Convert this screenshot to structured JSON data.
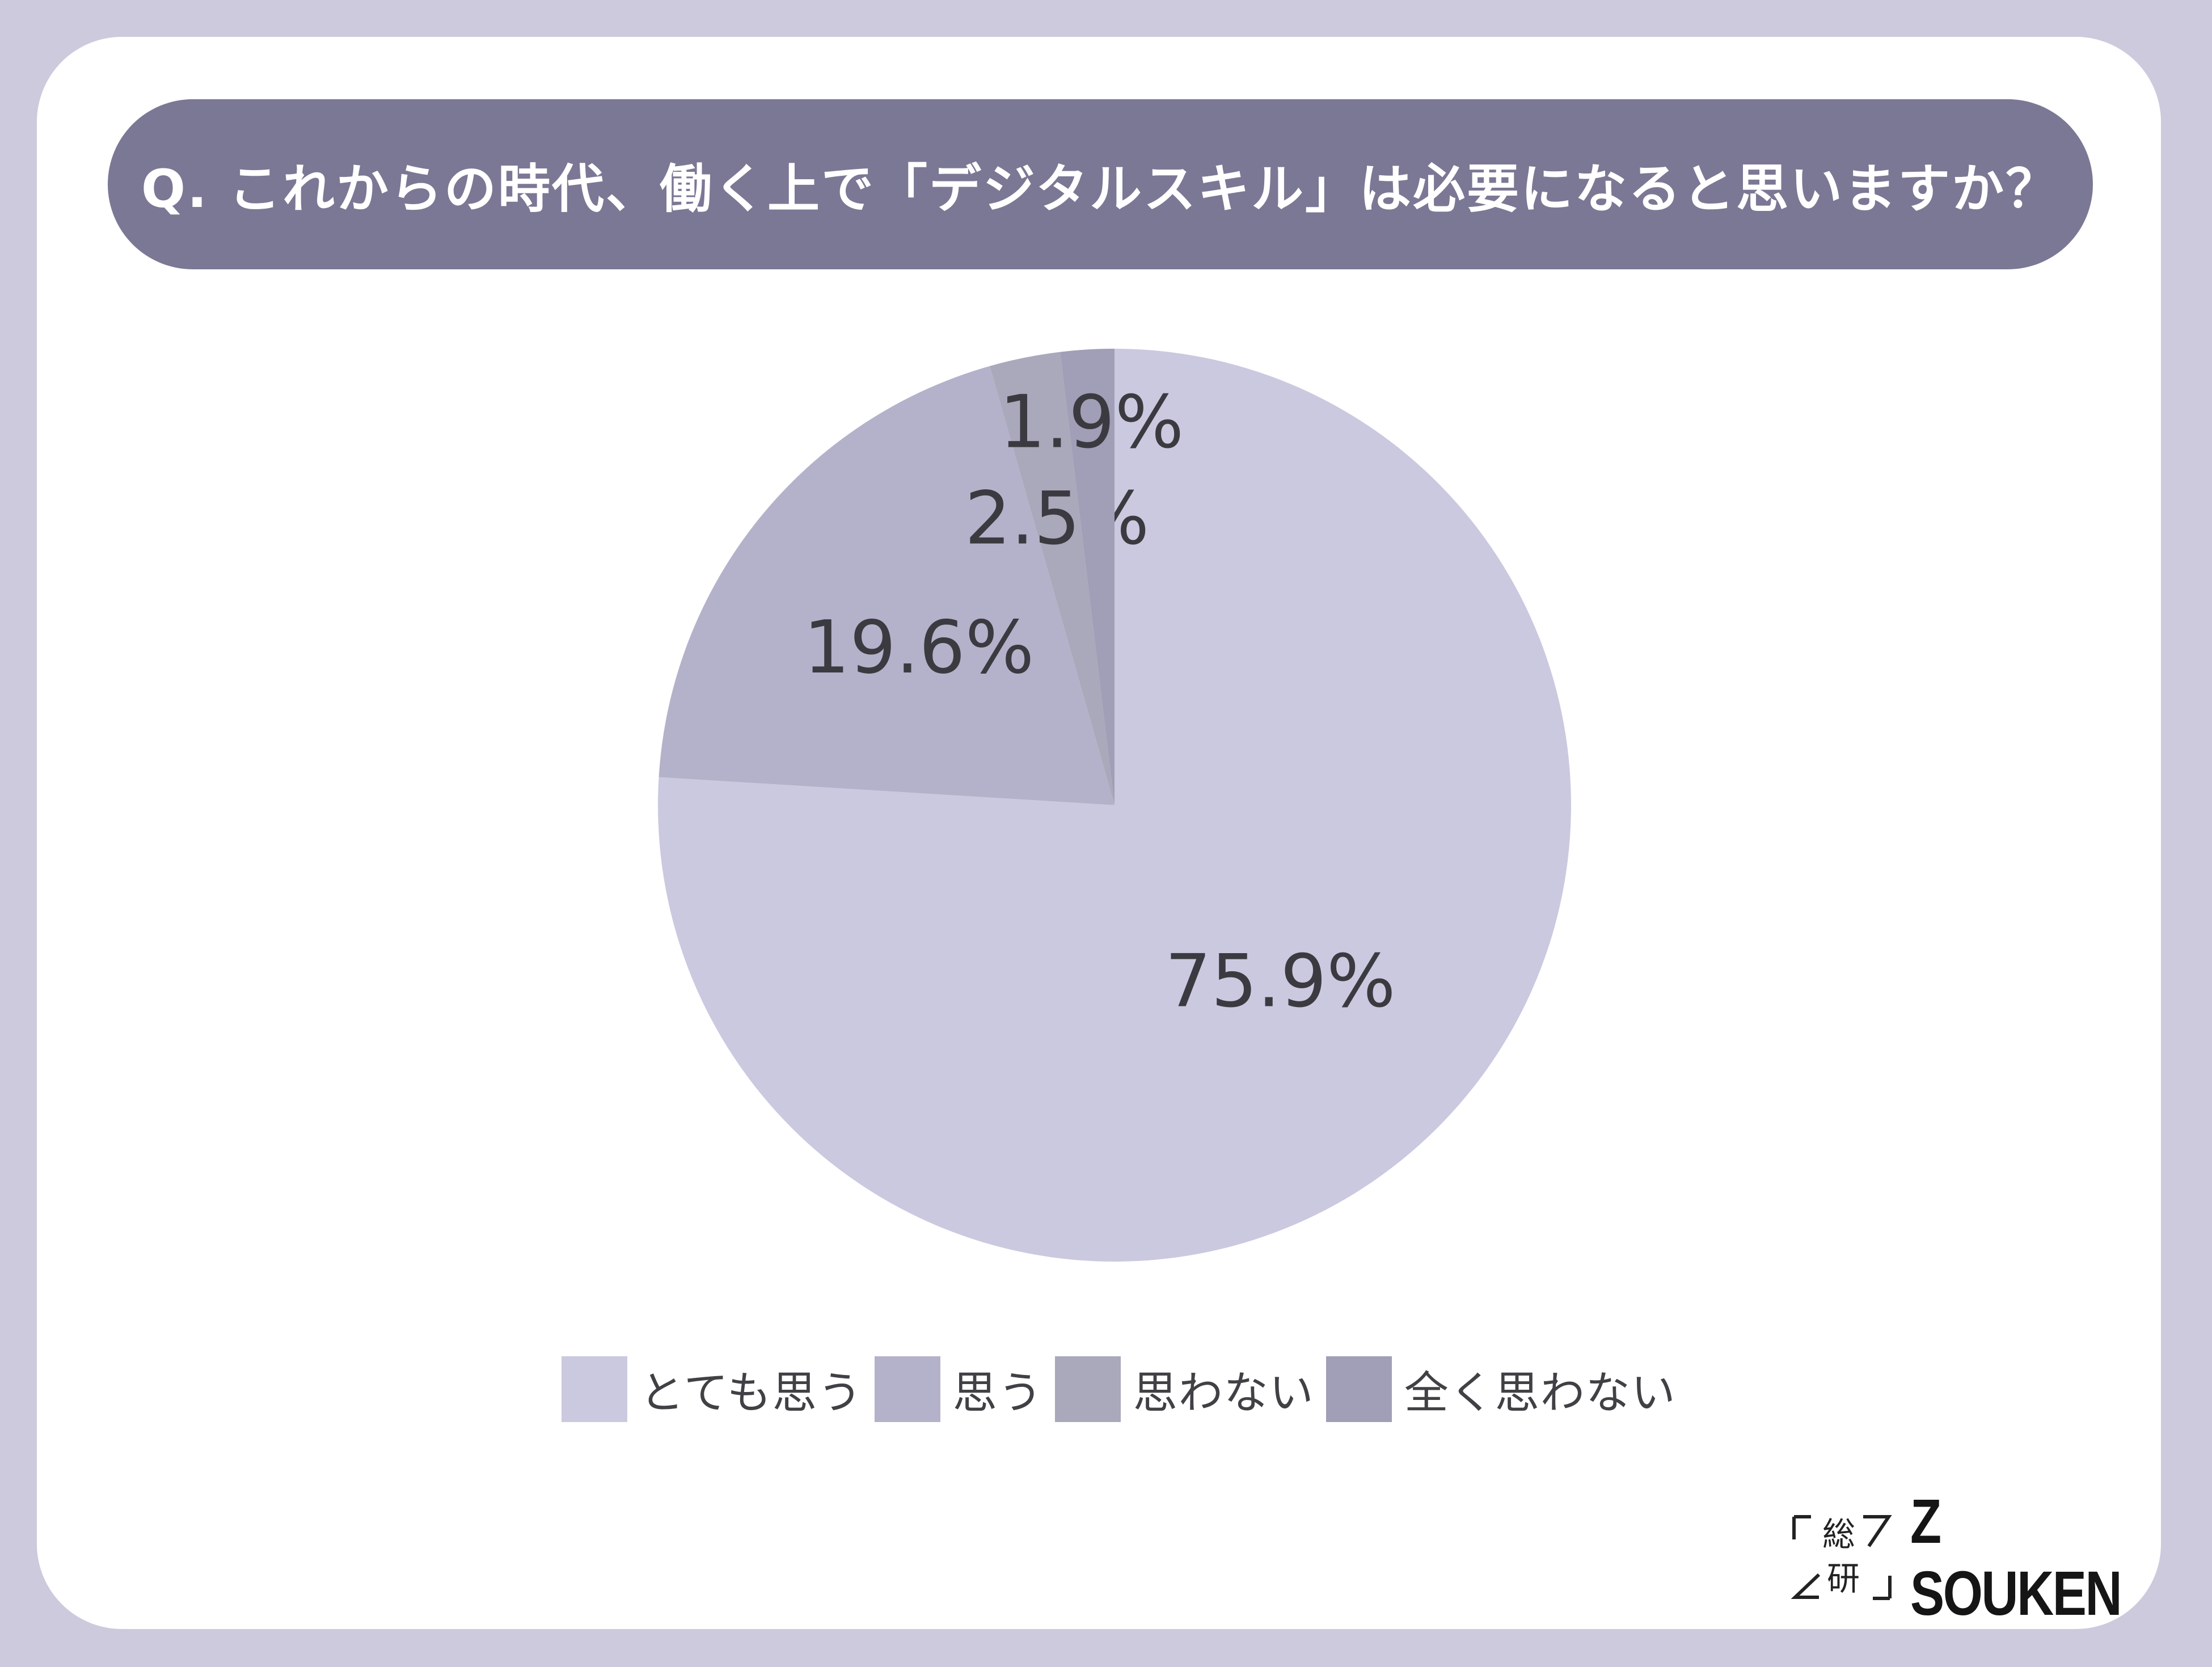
{
  "title": "Q. これからの時代、働く上で「デジタルスキル」は必要になると思いますか？",
  "chart_data": {
    "type": "pie",
    "categories": [
      "とても思う",
      "思う",
      "思わない",
      "全く思わない"
    ],
    "values": [
      75.9,
      19.6,
      2.5,
      1.9
    ],
    "value_labels": [
      "75.9%",
      "19.6%",
      "2.5%",
      "1.9%"
    ],
    "colors": [
      "#cbc9df",
      "#b4b2ca",
      "#aaa8bb",
      "#a09fb7"
    ],
    "legend_placement": "bottom"
  },
  "legend": [
    {
      "label": "とても思う",
      "color": "#cbc9df"
    },
    {
      "label": "思う",
      "color": "#b4b2ca"
    },
    {
      "label": "思わない",
      "color": "#aaa8bb"
    },
    {
      "label": "全く思わない",
      "color": "#a09fb7"
    }
  ],
  "logo": {
    "mark_top": "総",
    "mark_bottom": "研",
    "text": "Z SOUKEN"
  }
}
